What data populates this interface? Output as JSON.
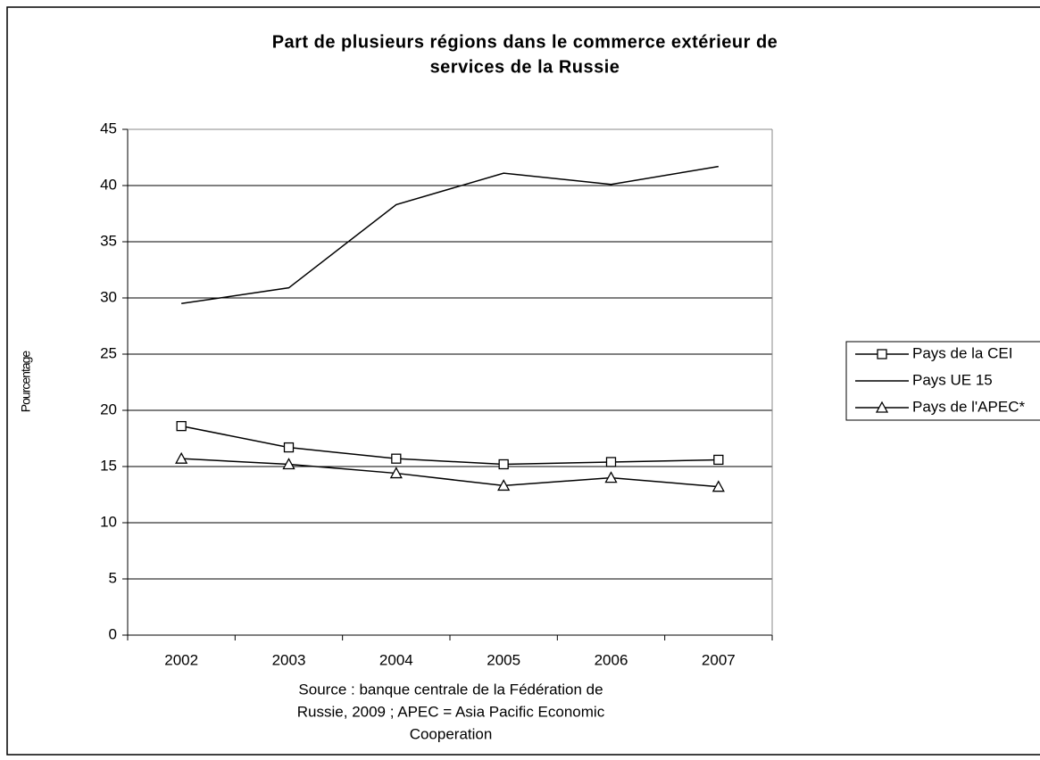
{
  "chart_data": {
    "type": "line",
    "title": [
      "Part de plusieurs régions dans le commerce extérieur de",
      "services de la Russie"
    ],
    "y_label": "Pourcentage",
    "source": [
      "Source : banque centrale de la Fédération de",
      "Russie, 2009 ; APEC = Asia Pacific Economic",
      "Cooperation"
    ],
    "categories": [
      "2002",
      "2003",
      "2004",
      "2005",
      "2006",
      "2007"
    ],
    "series": [
      {
        "name": "Pays de la CEI",
        "color": "#000000",
        "marker": "square",
        "values": [
          18.6,
          16.7,
          15.7,
          15.2,
          15.4,
          15.6
        ]
      },
      {
        "name": "Pays UE 15",
        "color": "#000000",
        "marker": "none",
        "values": [
          29.5,
          30.9,
          38.3,
          41.1,
          40.1,
          41.7
        ]
      },
      {
        "name": "Pays de l'APEC*",
        "color": "#000000",
        "marker": "triangle",
        "values": [
          15.7,
          15.2,
          14.4,
          13.3,
          14.0,
          13.2
        ]
      }
    ],
    "ylim": [
      0,
      45
    ],
    "yticks": [
      0,
      5,
      10,
      15,
      20,
      25,
      30,
      35,
      40,
      45
    ],
    "grid": true,
    "legend": "right"
  }
}
